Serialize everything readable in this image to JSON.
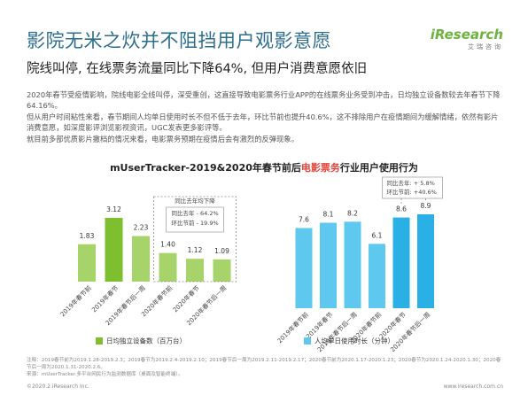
{
  "header": {
    "title": "影院无米之炊并不阻挡用户观影意愿",
    "subtitle": "院线叫停, 在线票务流量同比下降64%, 但用户消费意愿依旧",
    "logo": "iResearch",
    "logo_sub": "艾瑞咨询"
  },
  "body": {
    "paragraphs": [
      "2020年春节受疫情影响，院线电影全线叫停，深受重创，这直接导致电影票务行业APP的在线票务业务受到冲击，日均独立设备数较去年春节下降64.16%。",
      "但从用户时间粘性来看，春节期间人均单日使用时长不但不低于去年，环比节前也提升40.6%，这不排除用户在疫情期间为缓解情绪，依然有影片消费意愿，如深度影评浏览影视资讯，UGC发表更多影评等。",
      "就目前多部优质影片撤档的情况来看，电影票务预期在疫情后会有激烈的反弹现象。"
    ],
    "figure_title": [
      "mUserTracker-2019&2020年春节前后",
      "电影票务",
      "行业用户使用行为"
    ]
  },
  "chart_data": [
    {
      "type": "bar",
      "categories": [
        "2019年春节前",
        "2019年春节",
        "2019年春节后一周",
        "2020年春节前",
        "2020年春节",
        "2020年春节后一周"
      ],
      "values": [
        1.83,
        3.12,
        2.23,
        1.4,
        1.12,
        1.09
      ],
      "value_labels": [
        "1.83",
        "3.12",
        "2.23",
        "1.40",
        "1.12",
        "1.09"
      ],
      "colors": [
        "#a6d36a",
        "#7dbf2e",
        "#a6d36a",
        "#a6d36a",
        "#a6d36a",
        "#a6d36a"
      ],
      "legend": "日均独立设备数（百万台）",
      "annotation": [
        "同比去年均下降",
        "同比去年 - 64.2%",
        "环比节前 - 19.9%"
      ]
    },
    {
      "type": "bar",
      "categories": [
        "2019年春节前",
        "2019年春节",
        "2019年春节后一周",
        "2020年春节前",
        "2020年春节",
        "2020年春节后一周"
      ],
      "values": [
        7.6,
        8.1,
        8.2,
        6.1,
        8.6,
        8.9
      ],
      "colors": [
        "#5ec8ef",
        "#5ec8ef",
        "#5ec8ef",
        "#5ec8ef",
        "#2bb0e6",
        "#2bb0e6"
      ],
      "legend": "人均单日使用时长（分钟）",
      "annotation": [
        "同比去年: + 5.8%",
        "环比节前: +40.6%"
      ]
    }
  ],
  "footer": {
    "notes": [
      "注释：2019春节前为2019.1.28-2019.2.3；2019春节为2019.2.4-2019.2.10；2019春节后一周为2019.2.11-2019.2.17；2020春节前为2020.1.17-2020.1.23；2020春节为2020.1.24-2020.1.30；2020春节后一周为2020.1.31-2020.2.6。",
      "来源：mUserTracker.多平台网民行为监测数据库（桌面及智能终端）。"
    ],
    "copyright": "©2020.2 iResearch Inc.",
    "site": "www.iresearch.com.cn"
  }
}
